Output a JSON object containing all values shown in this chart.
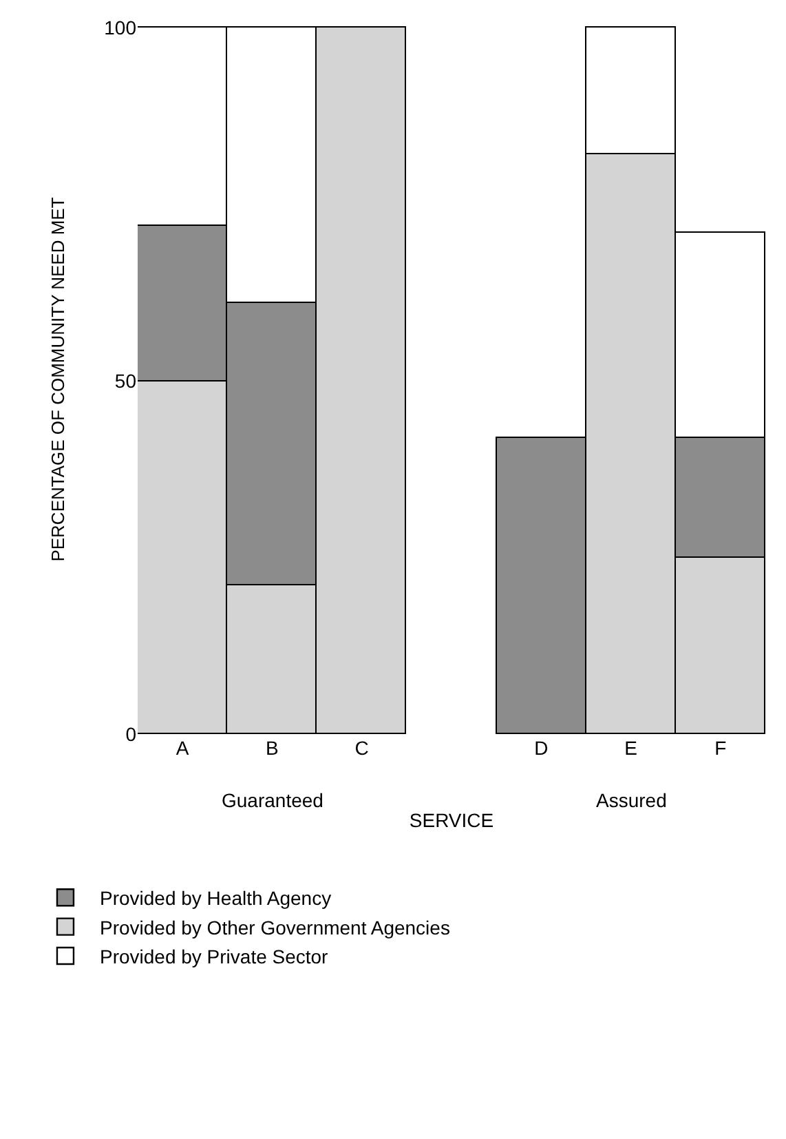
{
  "chart_data": {
    "type": "bar",
    "stacked": true,
    "categories": [
      "A",
      "B",
      "C",
      null,
      "D",
      "E",
      "F"
    ],
    "xlabel": "SERVICE",
    "ylabel": "PERCENTAGE OF COMMUNITY NEED MET",
    "ylim": [
      0,
      100
    ],
    "yticks": [
      0,
      50,
      100
    ],
    "legend": "bottom",
    "annotations": [
      "Guaranteed",
      "Assured"
    ],
    "series": [
      {
        "name": "Provided by Other Government Agencies",
        "color": "#d4d4d4",
        "values": [
          50,
          21,
          100,
          null,
          null,
          82,
          25
        ]
      },
      {
        "name": "Provided by Health Agency",
        "color": "#8c8c8c",
        "values": [
          22,
          40,
          null,
          null,
          42,
          null,
          17
        ]
      },
      {
        "name": "Provided by Private Sector",
        "color": "#ffffff",
        "values": [
          28,
          39,
          null,
          null,
          null,
          18,
          29
        ]
      }
    ]
  }
}
